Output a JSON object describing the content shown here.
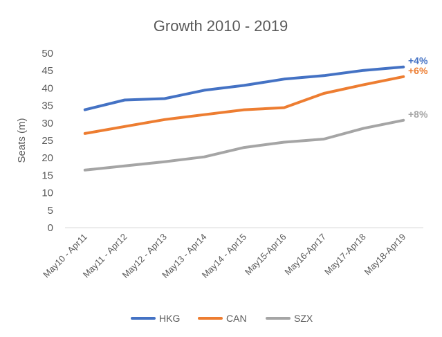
{
  "chart_data": {
    "type": "line",
    "title": "Growth 2010 - 2019",
    "xlabel": "",
    "ylabel": "Seats (m)",
    "ylim": [
      0,
      50
    ],
    "yticks": [
      0,
      5,
      10,
      15,
      20,
      25,
      30,
      35,
      40,
      45,
      50
    ],
    "grid": false,
    "legend_position": "bottom",
    "categories": [
      "May10 - Apr11",
      "May11 - Apr12",
      "May12 - Apr13",
      "May13 - Apr14",
      "May14 - Apr15",
      "May15-Apr16",
      "May16-Apr17",
      "May17-Apr18",
      "May18-Apr19"
    ],
    "series": [
      {
        "name": "HKG",
        "color": "#4472c4",
        "values": [
          33.8,
          36.6,
          37.0,
          39.4,
          40.8,
          42.6,
          43.6,
          45.1,
          46.1
        ],
        "end_label": "+4%"
      },
      {
        "name": "CAN",
        "color": "#ed7d31",
        "values": [
          27.0,
          29.0,
          31.0,
          32.4,
          33.8,
          34.4,
          38.5,
          41.0,
          43.3
        ],
        "end_label": "+6%"
      },
      {
        "name": "SZX",
        "color": "#a5a5a5",
        "values": [
          16.5,
          17.7,
          18.9,
          20.3,
          23.0,
          24.5,
          25.4,
          28.5,
          30.8
        ],
        "end_label": "+8%"
      }
    ]
  }
}
